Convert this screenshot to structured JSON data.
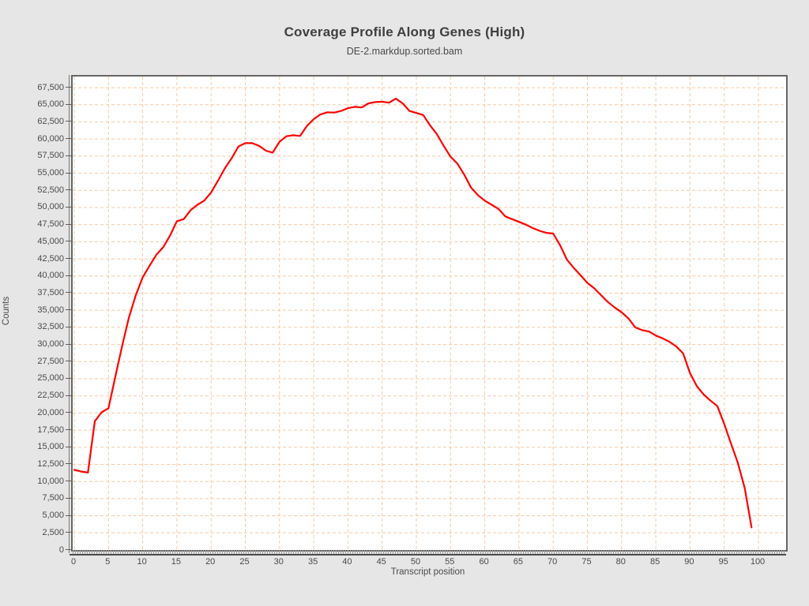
{
  "header": {
    "title": "Coverage Profile Along Genes (High)",
    "subtitle": "DE-2.markdup.sorted.bam"
  },
  "chart_data": {
    "type": "line",
    "title": "Coverage Profile Along Genes (High)",
    "subtitle": "DE-2.markdup.sorted.bam",
    "xlabel": "Transcript position",
    "ylabel": "Counts",
    "series": [
      {
        "name": "DE-2.markdup.sorted.bam",
        "color": "#ff0000",
        "x_start": 0,
        "x_interval": 1,
        "values": [
          11700,
          11450,
          11300,
          18800,
          20100,
          20700,
          25300,
          29800,
          34000,
          37200,
          39800,
          41500,
          43100,
          44200,
          45900,
          48000,
          48300,
          49600,
          50400,
          51000,
          52200,
          53900,
          55700,
          57200,
          58900,
          59400,
          59400,
          59000,
          58300,
          58000,
          59600,
          60400,
          60550,
          60450,
          61900,
          62900,
          63600,
          63900,
          63850,
          64100,
          64500,
          64700,
          64600,
          65200,
          65400,
          65450,
          65300,
          65900,
          65200,
          64100,
          63800,
          63500,
          62000,
          60700,
          59000,
          57400,
          56400,
          54800,
          52900,
          51800,
          51000,
          50400,
          49800,
          48700,
          48300,
          47900,
          47500,
          47000,
          46600,
          46300,
          46200,
          44500,
          42400,
          41200,
          40100,
          39000,
          38200,
          37200,
          36200,
          35400,
          34700,
          33800,
          32500,
          32100,
          31900,
          31300,
          30900,
          30400,
          29700,
          28700,
          25800,
          23900,
          22700,
          21800,
          21000,
          18400,
          15500,
          12700,
          9000,
          3300
        ]
      }
    ],
    "x_ticks": [
      0,
      5,
      10,
      15,
      20,
      25,
      30,
      35,
      40,
      45,
      50,
      55,
      60,
      65,
      70,
      75,
      80,
      85,
      90,
      95,
      100
    ],
    "y_ticks": [
      "0",
      "2,500",
      "5,000",
      "7,500",
      "10,000",
      "12,500",
      "15,000",
      "17,500",
      "20,000",
      "22,500",
      "25,000",
      "27,500",
      "30,000",
      "32,500",
      "35,000",
      "37,500",
      "40,000",
      "42,500",
      "45,000",
      "47,500",
      "50,000",
      "52,500",
      "55,000",
      "57,500",
      "60,000",
      "62,500",
      "65,000",
      "67,500"
    ],
    "y_tick_step": 2500,
    "ylim": [
      0,
      69120
    ],
    "xlim": [
      -0.2,
      104.1
    ],
    "grid": true,
    "grid_color": "#f7caa5",
    "line_color": "#ff0000",
    "background": "#e6e6e6",
    "plot_background": "#ffffff",
    "legend": "none"
  }
}
